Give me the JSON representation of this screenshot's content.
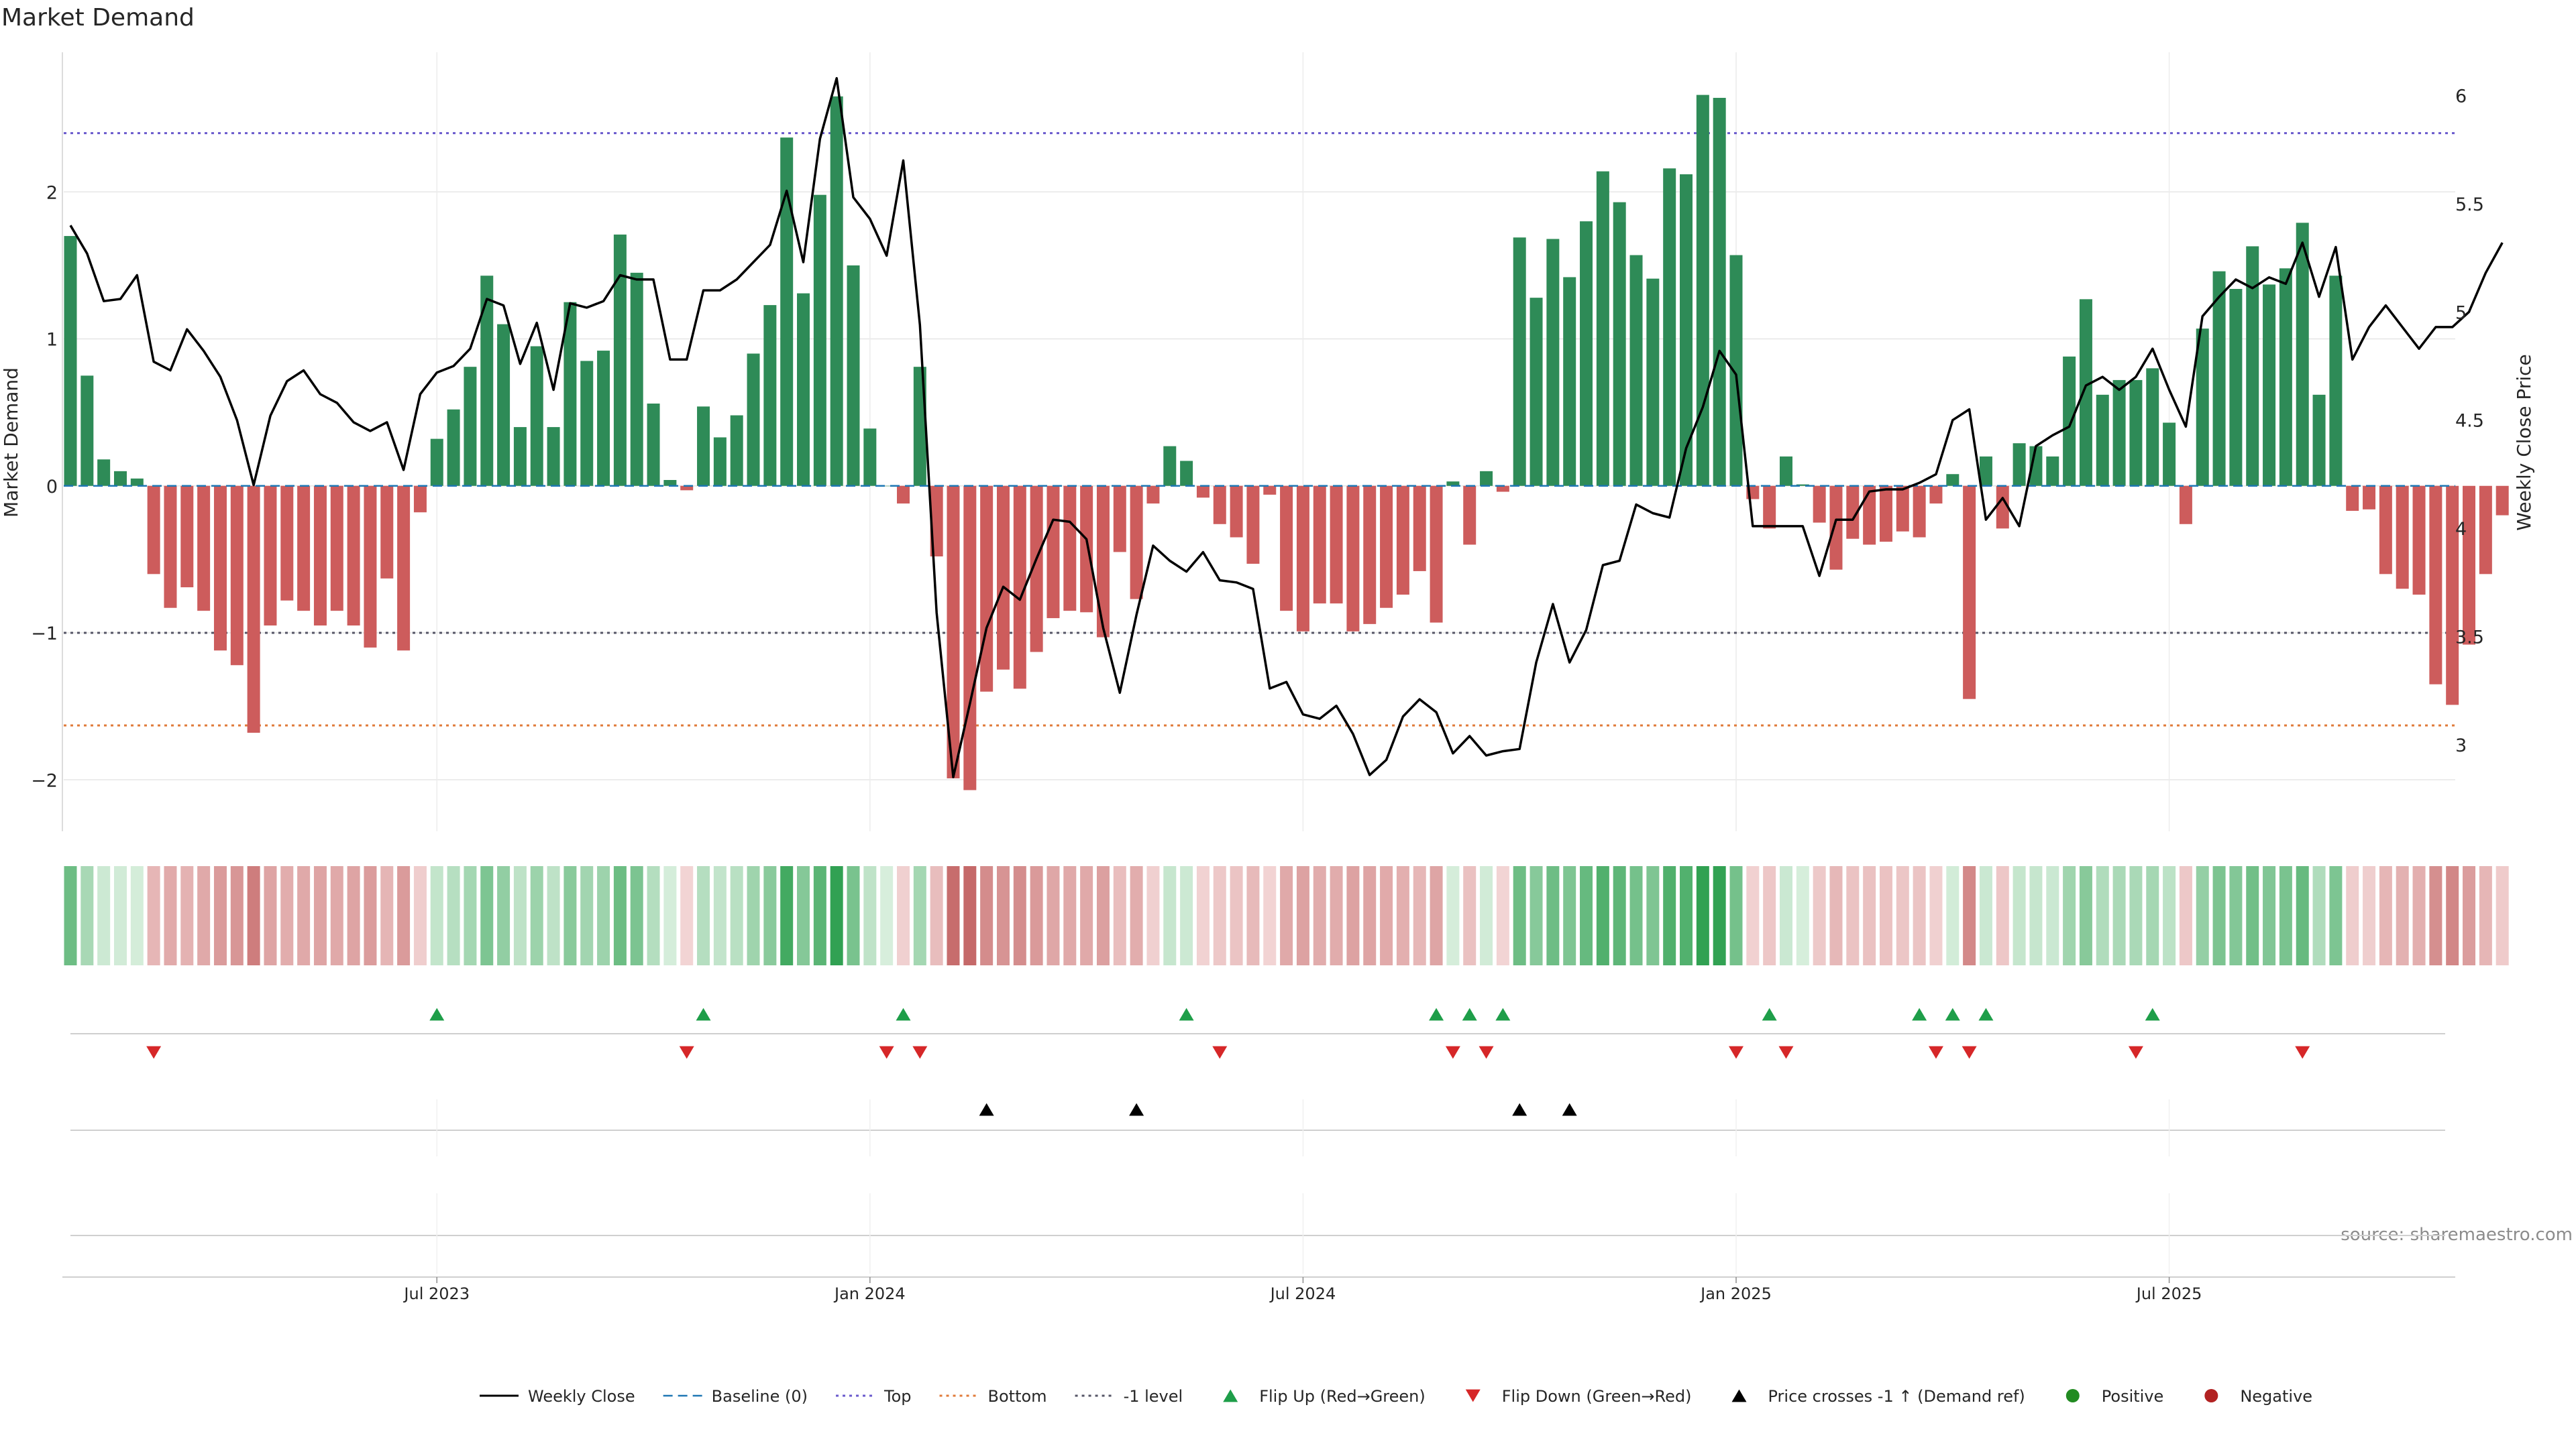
{
  "chart_data": {
    "type": "bar",
    "title": "Market Demand",
    "ylabel": "Market Demand",
    "y2label": "Weekly Close Price",
    "source": "source: sharemaestro.com",
    "ylim": [
      -2.35,
      2.95
    ],
    "y2lim": [
      2.6,
      6.2
    ],
    "yticks": [
      {
        "v": 2,
        "label": "2"
      },
      {
        "v": 1,
        "label": "1"
      },
      {
        "v": 0,
        "label": "0"
      },
      {
        "v": -1,
        "label": "−1"
      },
      {
        "v": -2,
        "label": "−2"
      }
    ],
    "y2ticks": [
      {
        "v": 6,
        "label": "6"
      },
      {
        "v": 5.5,
        "label": "5.5"
      },
      {
        "v": 5,
        "label": "5"
      },
      {
        "v": 4.5,
        "label": "4.5"
      },
      {
        "v": 4,
        "label": "4"
      },
      {
        "v": 3.5,
        "label": "3.5"
      },
      {
        "v": 3,
        "label": "3"
      }
    ],
    "xticks": [
      {
        "week": 22,
        "label": "Jul 2023"
      },
      {
        "week": 48,
        "label": "Jan 2024"
      },
      {
        "week": 74,
        "label": "Jul 2024"
      },
      {
        "week": 100,
        "label": "Jan 2025"
      },
      {
        "week": 126,
        "label": "Jul 2025"
      }
    ],
    "reference_lines": {
      "top": 2.4,
      "bottom": -1.63,
      "minus_one": -1,
      "baseline": 0
    },
    "colors": {
      "positive": "#2e8b57",
      "negative": "#cd5c5c",
      "close": "#000000",
      "top": "#6a5acd",
      "bottom": "#e07b39",
      "minus_one": "#555566",
      "baseline": "#1f77b4",
      "flip_up": "#1e9e49",
      "flip_down": "#d62728",
      "cross": "#000000",
      "pos_dot": "#228b22",
      "neg_dot": "#b22222"
    },
    "demand": [
      1.7,
      0.75,
      0.18,
      0.1,
      0.05,
      -0.6,
      -0.83,
      -0.69,
      -0.85,
      -1.12,
      -1.22,
      -1.68,
      -0.95,
      -0.78,
      -0.85,
      -0.95,
      -0.85,
      -0.95,
      -1.1,
      -0.63,
      -1.12,
      -0.18,
      0.32,
      0.52,
      0.81,
      1.43,
      1.1,
      0.4,
      0.95,
      0.4,
      1.25,
      0.85,
      0.92,
      1.71,
      1.45,
      0.56,
      0.04,
      -0.03,
      0.54,
      0.33,
      0.48,
      0.9,
      1.23,
      2.37,
      1.31,
      1.98,
      2.65,
      1.5,
      0.39,
      0.0,
      -0.12,
      0.81,
      -0.48,
      -1.99,
      -2.07,
      -1.4,
      -1.25,
      -1.38,
      -1.13,
      -0.9,
      -0.85,
      -0.86,
      -1.03,
      -0.45,
      -0.77,
      -0.12,
      0.27,
      0.17,
      -0.08,
      -0.26,
      -0.35,
      -0.53,
      -0.06,
      -0.85,
      -0.99,
      -0.8,
      -0.8,
      -0.99,
      -0.94,
      -0.83,
      -0.74,
      -0.58,
      -0.93,
      0.03,
      -0.4,
      0.1,
      -0.04,
      1.69,
      1.28,
      1.68,
      1.42,
      1.8,
      2.14,
      1.93,
      1.57,
      1.41,
      2.16,
      2.12,
      2.66,
      2.64,
      1.57,
      -0.09,
      -0.29,
      0.2,
      0.01,
      -0.25,
      -0.57,
      -0.36,
      -0.4,
      -0.38,
      -0.31,
      -0.35,
      -0.12,
      0.08,
      -1.45,
      0.2,
      -0.29,
      0.29,
      0.27,
      0.2,
      0.88,
      1.27,
      0.62,
      0.72,
      0.72,
      0.8,
      0.43,
      -0.26,
      1.07,
      1.46,
      1.34,
      1.63,
      1.37,
      1.48,
      1.79,
      0.62,
      1.43,
      -0.17,
      -0.16,
      -0.6,
      -0.7,
      -0.74,
      -1.35,
      -1.49,
      -1.08,
      -0.6,
      -0.2
    ],
    "close": [
      5.4,
      5.27,
      5.05,
      5.06,
      5.17,
      4.77,
      4.73,
      4.92,
      4.82,
      4.7,
      4.5,
      4.2,
      4.52,
      4.68,
      4.73,
      4.62,
      4.58,
      4.49,
      4.45,
      4.49,
      4.27,
      4.62,
      4.72,
      4.75,
      4.83,
      5.06,
      5.03,
      4.76,
      4.95,
      4.64,
      5.04,
      5.02,
      5.05,
      5.17,
      5.15,
      5.15,
      4.78,
      4.78,
      5.1,
      5.1,
      5.15,
      5.23,
      5.31,
      5.56,
      5.23,
      5.8,
      6.08,
      5.53,
      5.43,
      5.26,
      5.7,
      4.94,
      3.61,
      2.85,
      3.19,
      3.54,
      3.73,
      3.67,
      3.86,
      4.04,
      4.03,
      3.95,
      3.54,
      3.24,
      3.6,
      3.92,
      3.85,
      3.8,
      3.89,
      3.76,
      3.75,
      3.72,
      3.26,
      3.29,
      3.14,
      3.12,
      3.18,
      3.05,
      2.86,
      2.93,
      3.13,
      3.21,
      3.15,
      2.96,
      3.04,
      2.95,
      2.97,
      2.98,
      3.38,
      3.65,
      3.38,
      3.53,
      3.83,
      3.85,
      4.11,
      4.07,
      4.05,
      4.37,
      4.56,
      4.82,
      4.71,
      4.01,
      4.01,
      4.01,
      4.01,
      3.78,
      4.04,
      4.04,
      4.17,
      4.18,
      4.18,
      4.21,
      4.25,
      4.5,
      4.55,
      4.04,
      4.14,
      4.01,
      4.38,
      4.43,
      4.47,
      4.66,
      4.7,
      4.64,
      4.7,
      4.83,
      4.64,
      4.47,
      4.98,
      5.07,
      5.15,
      5.11,
      5.16,
      5.13,
      5.32,
      5.07,
      5.3,
      4.78,
      4.93,
      5.03,
      4.93,
      4.83,
      4.93,
      4.93,
      5.0,
      5.18,
      5.32
    ],
    "flip_up_weeks": [
      22,
      38,
      50,
      67,
      82,
      84,
      86,
      102,
      111,
      113,
      115,
      125
    ],
    "flip_down_weeks": [
      5,
      37,
      49,
      51,
      69,
      83,
      85,
      100,
      103,
      112,
      114,
      124,
      134
    ],
    "cross_weeks": [
      55,
      64,
      87,
      90
    ],
    "legend": [
      {
        "kind": "line-solid",
        "label": "Weekly Close"
      },
      {
        "kind": "line-dashed",
        "label": "Baseline (0)"
      },
      {
        "kind": "line-dotted-top",
        "label": "Top"
      },
      {
        "kind": "line-dotted-bottom",
        "label": "Bottom"
      },
      {
        "kind": "line-dotted-m1",
        "label": "-1 level"
      },
      {
        "kind": "tri-up-green",
        "label": "Flip Up (Red→Green)"
      },
      {
        "kind": "tri-down-red",
        "label": "Flip Down (Green→Red)"
      },
      {
        "kind": "tri-up-black",
        "label": "Price crosses -1 ↑ (Demand ref)"
      },
      {
        "kind": "dot-green",
        "label": "Positive"
      },
      {
        "kind": "dot-red",
        "label": "Negative"
      }
    ]
  }
}
